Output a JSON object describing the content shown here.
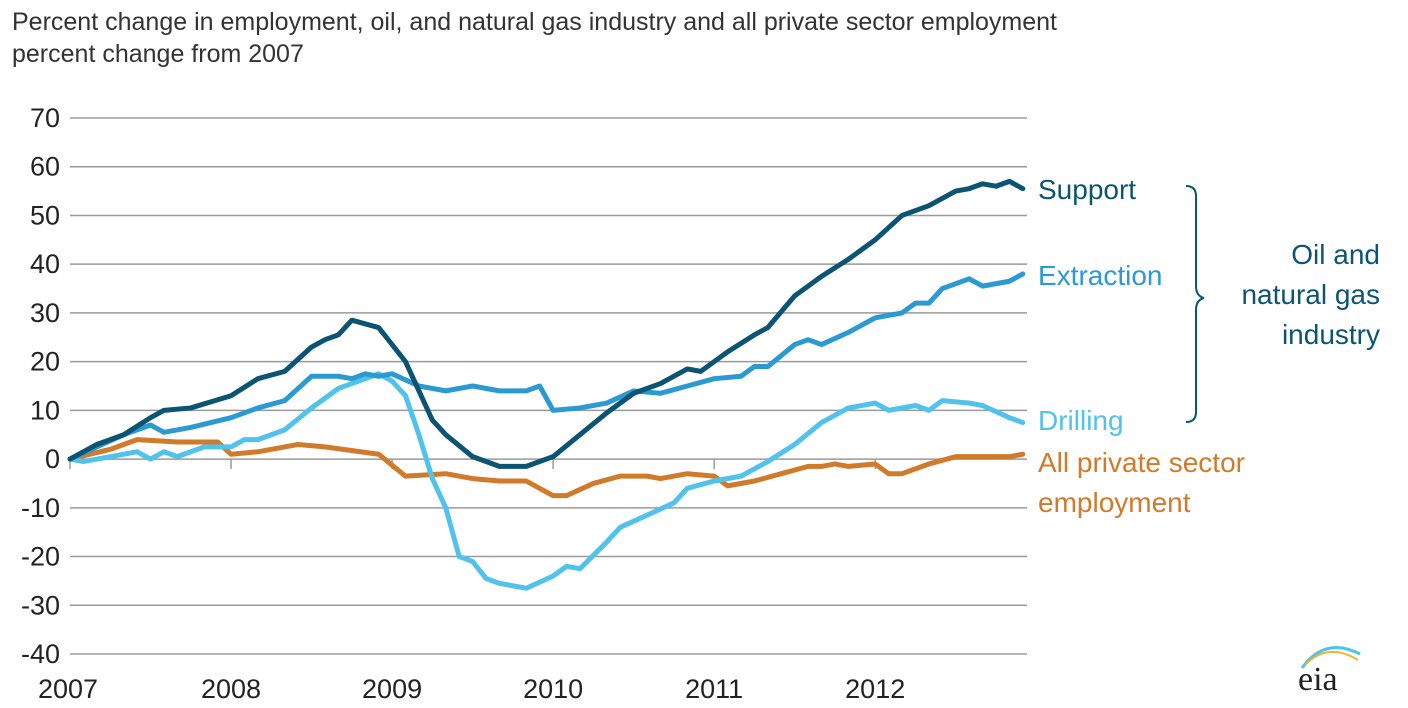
{
  "chart_data": {
    "type": "line",
    "title": "Percent change in employment, oil, and natural gas industry and all private sector employment",
    "subtitle": "percent change from 2007",
    "ylim": [
      -40,
      70
    ],
    "yticks": [
      70,
      60,
      50,
      40,
      30,
      20,
      10,
      0,
      -10,
      -20,
      -30,
      -40
    ],
    "xticks": [
      "2007",
      "2008",
      "2009",
      "2010",
      "2011",
      "2012"
    ],
    "grid": true,
    "group_label": "Oil and natural gas industry",
    "series": [
      {
        "name": "Support",
        "color": "#0b5473",
        "points": [
          [
            "2007-01",
            0
          ],
          [
            "2007-03",
            3
          ],
          [
            "2007-05",
            5
          ],
          [
            "2007-07",
            8.5
          ],
          [
            "2007-08",
            10
          ],
          [
            "2007-10",
            10.5
          ],
          [
            "2008-01",
            13
          ],
          [
            "2008-03",
            16.5
          ],
          [
            "2008-05",
            18
          ],
          [
            "2008-07",
            23
          ],
          [
            "2008-08",
            24.5
          ],
          [
            "2008-09",
            25.5
          ],
          [
            "2008-10",
            28.5
          ],
          [
            "2008-12",
            27
          ],
          [
            "2009-02",
            20
          ],
          [
            "2009-04",
            8
          ],
          [
            "2009-05",
            5
          ],
          [
            "2009-07",
            0.5
          ],
          [
            "2009-09",
            -1.5
          ],
          [
            "2009-11",
            -1.5
          ],
          [
            "2010-01",
            0.5
          ],
          [
            "2010-03",
            5
          ],
          [
            "2010-05",
            9.5
          ],
          [
            "2010-07",
            13.5
          ],
          [
            "2010-09",
            15.5
          ],
          [
            "2010-11",
            18.5
          ],
          [
            "2010-12",
            18
          ],
          [
            "2011-02",
            22
          ],
          [
            "2011-04",
            25.5
          ],
          [
            "2011-05",
            27
          ],
          [
            "2011-07",
            33.5
          ],
          [
            "2011-09",
            37.5
          ],
          [
            "2011-11",
            41
          ],
          [
            "2012-01",
            45
          ],
          [
            "2012-03",
            50
          ],
          [
            "2012-05",
            52
          ],
          [
            "2012-07",
            55
          ],
          [
            "2012-08",
            55.5
          ],
          [
            "2012-09",
            56.5
          ],
          [
            "2012-10",
            56
          ],
          [
            "2012-11",
            57
          ],
          [
            "2012-12",
            55.5
          ]
        ]
      },
      {
        "name": "Extraction",
        "color": "#2b9ad3",
        "points": [
          [
            "2007-01",
            0
          ],
          [
            "2007-03",
            2.5
          ],
          [
            "2007-05",
            5
          ],
          [
            "2007-07",
            7
          ],
          [
            "2007-08",
            5.5
          ],
          [
            "2007-10",
            6.5
          ],
          [
            "2008-01",
            8.5
          ],
          [
            "2008-03",
            10.5
          ],
          [
            "2008-05",
            12
          ],
          [
            "2008-06",
            14.5
          ],
          [
            "2008-07",
            17
          ],
          [
            "2008-09",
            17
          ],
          [
            "2008-10",
            16.5
          ],
          [
            "2008-11",
            17.5
          ],
          [
            "2008-12",
            17
          ],
          [
            "2009-01",
            17.5
          ],
          [
            "2009-03",
            15
          ],
          [
            "2009-05",
            14
          ],
          [
            "2009-07",
            15
          ],
          [
            "2009-09",
            14
          ],
          [
            "2009-11",
            14
          ],
          [
            "2009-12",
            15
          ],
          [
            "2010-01",
            10
          ],
          [
            "2010-03",
            10.5
          ],
          [
            "2010-05",
            11.5
          ],
          [
            "2010-07",
            14
          ],
          [
            "2010-09",
            13.5
          ],
          [
            "2010-11",
            15
          ],
          [
            "2011-01",
            16.5
          ],
          [
            "2011-03",
            17
          ],
          [
            "2011-04",
            19
          ],
          [
            "2011-05",
            19
          ],
          [
            "2011-07",
            23.5
          ],
          [
            "2011-08",
            24.5
          ],
          [
            "2011-09",
            23.5
          ],
          [
            "2011-11",
            26
          ],
          [
            "2012-01",
            29
          ],
          [
            "2012-03",
            30
          ],
          [
            "2012-04",
            32
          ],
          [
            "2012-05",
            32
          ],
          [
            "2012-06",
            35
          ],
          [
            "2012-08",
            37
          ],
          [
            "2012-09",
            35.5
          ],
          [
            "2012-11",
            36.5
          ],
          [
            "2012-12",
            38
          ]
        ]
      },
      {
        "name": "Drilling",
        "color": "#4fc3ec",
        "points": [
          [
            "2007-01",
            0
          ],
          [
            "2007-02",
            -0.5
          ],
          [
            "2007-04",
            0.5
          ],
          [
            "2007-06",
            1.5
          ],
          [
            "2007-07",
            0
          ],
          [
            "2007-08",
            1.5
          ],
          [
            "2007-09",
            0.5
          ],
          [
            "2007-11",
            2.5
          ],
          [
            "2008-01",
            2.5
          ],
          [
            "2008-02",
            4
          ],
          [
            "2008-03",
            4
          ],
          [
            "2008-05",
            6
          ],
          [
            "2008-07",
            10.5
          ],
          [
            "2008-09",
            14.5
          ],
          [
            "2008-11",
            16.5
          ],
          [
            "2008-12",
            17.5
          ],
          [
            "2009-01",
            16
          ],
          [
            "2009-02",
            13
          ],
          [
            "2009-03",
            5
          ],
          [
            "2009-04",
            -4
          ],
          [
            "2009-05",
            -10
          ],
          [
            "2009-06",
            -20
          ],
          [
            "2009-07",
            -21
          ],
          [
            "2009-08",
            -24.5
          ],
          [
            "2009-09",
            -25.5
          ],
          [
            "2009-11",
            -26.5
          ],
          [
            "2010-01",
            -24
          ],
          [
            "2010-02",
            -22
          ],
          [
            "2010-03",
            -22.5
          ],
          [
            "2010-05",
            -17
          ],
          [
            "2010-06",
            -14
          ],
          [
            "2010-08",
            -11.5
          ],
          [
            "2010-10",
            -9
          ],
          [
            "2010-11",
            -6
          ],
          [
            "2011-01",
            -4.5
          ],
          [
            "2011-03",
            -3.5
          ],
          [
            "2011-05",
            -0.5
          ],
          [
            "2011-07",
            3
          ],
          [
            "2011-09",
            7.5
          ],
          [
            "2011-11",
            10.5
          ],
          [
            "2012-01",
            11.5
          ],
          [
            "2012-02",
            10
          ],
          [
            "2012-04",
            11
          ],
          [
            "2012-05",
            10
          ],
          [
            "2012-06",
            12
          ],
          [
            "2012-08",
            11.5
          ],
          [
            "2012-09",
            11
          ],
          [
            "2012-11",
            8.5
          ],
          [
            "2012-12",
            7.5
          ]
        ]
      },
      {
        "name": "All private sector employment",
        "color": "#d17a2a",
        "points": [
          [
            "2007-01",
            0
          ],
          [
            "2007-04",
            2
          ],
          [
            "2007-06",
            4
          ],
          [
            "2007-09",
            3.5
          ],
          [
            "2007-12",
            3.5
          ],
          [
            "2008-01",
            1
          ],
          [
            "2008-03",
            1.5
          ],
          [
            "2008-06",
            3
          ],
          [
            "2008-08",
            2.5
          ],
          [
            "2008-12",
            1
          ],
          [
            "2009-02",
            -3.5
          ],
          [
            "2009-05",
            -3
          ],
          [
            "2009-07",
            -4
          ],
          [
            "2009-09",
            -4.5
          ],
          [
            "2009-11",
            -4.5
          ],
          [
            "2010-01",
            -7.5
          ],
          [
            "2010-02",
            -7.5
          ],
          [
            "2010-04",
            -5
          ],
          [
            "2010-06",
            -3.5
          ],
          [
            "2010-08",
            -3.5
          ],
          [
            "2010-09",
            -4
          ],
          [
            "2010-11",
            -3
          ],
          [
            "2011-01",
            -3.5
          ],
          [
            "2011-02",
            -5.5
          ],
          [
            "2011-04",
            -4.5
          ],
          [
            "2011-06",
            -3
          ],
          [
            "2011-08",
            -1.5
          ],
          [
            "2011-09",
            -1.5
          ],
          [
            "2011-10",
            -1
          ],
          [
            "2011-11",
            -1.5
          ],
          [
            "2012-01",
            -1
          ],
          [
            "2012-02",
            -3
          ],
          [
            "2012-03",
            -3
          ],
          [
            "2012-05",
            -1
          ],
          [
            "2012-07",
            0.5
          ],
          [
            "2012-09",
            0.5
          ],
          [
            "2012-11",
            0.5
          ],
          [
            "2012-12",
            1
          ]
        ]
      }
    ],
    "labels": {
      "support": "Support",
      "extraction": "Extraction",
      "drilling": "Drilling",
      "private_1": "All private sector",
      "private_2": "employment",
      "group_1": "Oil and",
      "group_2": "natural gas",
      "group_3": "industry"
    }
  },
  "logo": "eia"
}
